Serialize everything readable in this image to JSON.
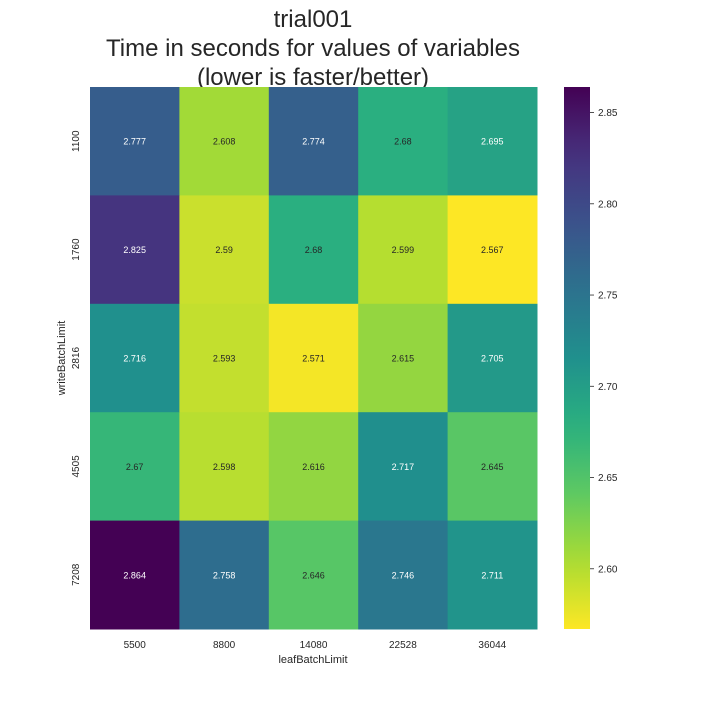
{
  "chart_data": {
    "type": "heatmap",
    "title_lines": [
      "trial001",
      "Time in seconds for values of variables",
      "(lower is faster/better)"
    ],
    "xlabel": "leafBatchLimit",
    "ylabel": "writeBatchLimit",
    "x_categories": [
      "5500",
      "8800",
      "14080",
      "22528",
      "36044"
    ],
    "y_categories": [
      "1100",
      "1760",
      "2816",
      "4505",
      "7208"
    ],
    "values": [
      [
        2.777,
        2.608,
        2.774,
        2.68,
        2.695
      ],
      [
        2.825,
        2.59,
        2.68,
        2.599,
        2.567
      ],
      [
        2.716,
        2.593,
        2.571,
        2.615,
        2.705
      ],
      [
        2.67,
        2.598,
        2.616,
        2.717,
        2.645
      ],
      [
        2.864,
        2.758,
        2.646,
        2.746,
        2.711
      ]
    ],
    "value_labels": [
      [
        "2.777",
        "2.608",
        "2.774",
        "2.68",
        "2.695"
      ],
      [
        "2.825",
        "2.59",
        "2.68",
        "2.599",
        "2.567"
      ],
      [
        "2.716",
        "2.593",
        "2.571",
        "2.615",
        "2.705"
      ],
      [
        "2.67",
        "2.598",
        "2.616",
        "2.717",
        "2.645"
      ],
      [
        "2.864",
        "2.758",
        "2.646",
        "2.746",
        "2.711"
      ]
    ],
    "colorbar": {
      "colormap": "viridis_r",
      "vmin": 2.567,
      "vmax": 2.864,
      "ticks": [
        2.6,
        2.65,
        2.7,
        2.75,
        2.8,
        2.85
      ],
      "tick_labels": [
        "2.60",
        "2.65",
        "2.70",
        "2.75",
        "2.80",
        "2.85"
      ]
    },
    "grid": false,
    "legend": "colorbar-right"
  }
}
